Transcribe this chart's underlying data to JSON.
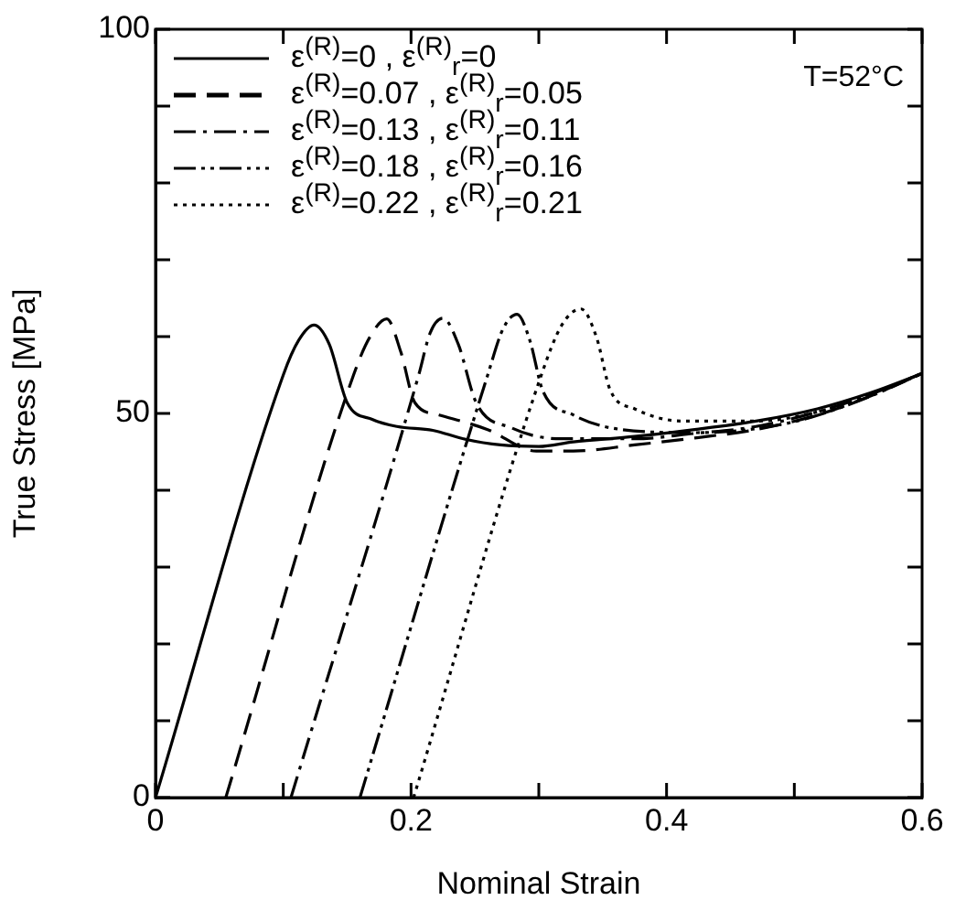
{
  "chart_data": {
    "type": "line",
    "xlabel": "Nominal Strain",
    "ylabel": "True Stress [MPa]",
    "xlim": [
      0,
      0.6
    ],
    "ylim": [
      0,
      100
    ],
    "xticks": [
      0,
      {
        "value": 0.1,
        "label": null
      },
      0.2,
      {
        "value": 0.3,
        "label": null
      },
      0.4,
      {
        "value": 0.5,
        "label": null
      },
      0.6
    ],
    "yticks": [
      0,
      {
        "value": 10,
        "label": null
      },
      {
        "value": 20,
        "label": null
      },
      {
        "value": 30,
        "label": null
      },
      {
        "value": 40,
        "label": null
      },
      50,
      {
        "value": 60,
        "label": null
      },
      {
        "value": 70,
        "label": null
      },
      {
        "value": 80,
        "label": null
      },
      {
        "value": 90,
        "label": null
      },
      100
    ],
    "grid": false,
    "legend": "top left",
    "marker": "none",
    "annotations": [
      "T=52°C"
    ],
    "series": [
      {
        "name": "ε$^{(R)}$=0 , ε$^{(R)}$$_{r}$=0",
        "color": "#000000",
        "line_style": "solid",
        "x": [
          0,
          0.1,
          0.112,
          0.124,
          0.136,
          0.15,
          0.17,
          0.189,
          0.217,
          0.241,
          0.27,
          0.3,
          0.327,
          0.375,
          0.422,
          0.47,
          0.518,
          0.56,
          0.6
        ],
        "values": [
          0,
          55,
          59.5,
          61.5,
          59,
          51.4,
          49.2,
          48.3,
          47.8,
          46.7,
          45.9,
          45.7,
          46.3,
          47,
          47.9,
          49,
          50.6,
          52.7,
          55.2
        ]
      },
      {
        "name": "ε$^{(R)}$=0.07 , ε$^{(R)}$$_{r}$=0.05",
        "color": "#000000",
        "line_style": "dashed",
        "x": [
          0.055,
          0.155,
          0.168,
          0.181,
          0.192,
          0.203,
          0.222,
          0.26,
          0.298,
          0.327,
          0.375,
          0.422,
          0.47,
          0.518,
          0.56,
          0.6
        ],
        "values": [
          0,
          55,
          60,
          62.3,
          58,
          51.4,
          49.8,
          47.9,
          45.1,
          45.1,
          45.9,
          46.8,
          47.9,
          49.8,
          52.3,
          55.2
        ]
      },
      {
        "name": "ε$^{(R)}$=0.13 , ε$^{(R)}$$_{r}$=0.11",
        "color": "#000000",
        "line_style": "dashdot",
        "x": [
          0.106,
          0.206,
          0.215,
          0.225,
          0.237,
          0.251,
          0.279,
          0.317,
          0.375,
          0.422,
          0.47,
          0.518,
          0.56,
          0.6
        ],
        "values": [
          0,
          55,
          60.5,
          62.4,
          59,
          51.4,
          48.1,
          46.7,
          46.7,
          47.4,
          48.3,
          50.2,
          52.5,
          55.2
        ]
      },
      {
        "name": "ε$^{(R)}$=0.18 , ε$^{(R)}$$_{r}$=0.16",
        "color": "#000000",
        "line_style": "dashdotdot",
        "x": [
          0.16,
          0.26,
          0.272,
          0.283,
          0.293,
          0.303,
          0.327,
          0.365,
          0.422,
          0.494,
          0.55,
          0.6
        ],
        "values": [
          0,
          55,
          61,
          62.9,
          59.5,
          53,
          49.8,
          47.9,
          47.5,
          48.7,
          51.6,
          55.2
        ]
      },
      {
        "name": "ε$^{(R)}$=0.22 , ε$^{(R)}$$_{r}$=0.21",
        "color": "#000000",
        "line_style": "dotted",
        "x": [
          0.202,
          0.302,
          0.318,
          0.333,
          0.345,
          0.356,
          0.375,
          0.413,
          0.47,
          0.518,
          0.56,
          0.6
        ],
        "values": [
          0,
          55,
          61.5,
          63.6,
          60,
          53,
          50.6,
          49,
          49,
          50.2,
          52.5,
          55.2
        ]
      }
    ]
  }
}
